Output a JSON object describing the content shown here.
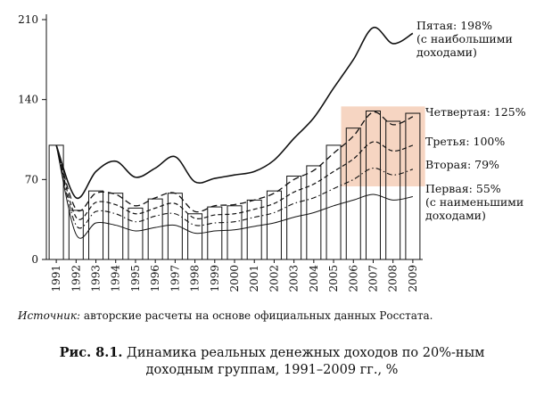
{
  "chart_data": {
    "type": "line",
    "title": "",
    "xlabel": "",
    "ylabel": "",
    "ylim": [
      0,
      210
    ],
    "yticks": [
      0,
      70,
      140,
      210
    ],
    "x": [
      "1991",
      "1992",
      "1993",
      "1994",
      "1995",
      "1996",
      "1997",
      "1998",
      "1999",
      "2000",
      "2001",
      "2002",
      "2003",
      "2004",
      "2005",
      "2006",
      "2007",
      "2008",
      "2009"
    ],
    "bars": [
      100,
      43,
      60,
      58,
      45,
      53,
      58,
      40,
      46,
      47,
      52,
      60,
      73,
      82,
      100,
      115,
      130,
      121,
      128
    ],
    "series": [
      {
        "key": "fifth",
        "style": "solid-thick",
        "values": [
          100,
          54,
          77,
          86,
          72,
          80,
          90,
          68,
          71,
          74,
          77,
          87,
          106,
          124,
          150,
          175,
          203,
          189,
          198
        ],
        "label": [
          "Пятая: 198%",
          "(с наибольшими",
          "доходами)"
        ]
      },
      {
        "key": "fourth",
        "style": "dashed-long",
        "values": [
          100,
          44,
          58,
          57,
          47,
          54,
          58,
          42,
          47,
          48,
          52,
          58,
          70,
          78,
          93,
          108,
          129,
          118,
          125
        ],
        "label": [
          "Четвертая: 125%"
        ]
      },
      {
        "key": "third",
        "style": "dashed",
        "values": [
          100,
          37,
          50,
          48,
          40,
          45,
          49,
          36,
          39,
          40,
          44,
          49,
          59,
          66,
          77,
          88,
          103,
          95,
          100
        ],
        "label": [
          "Третья: 100%"
        ]
      },
      {
        "key": "second",
        "style": "dashdot",
        "values": [
          100,
          30,
          42,
          40,
          33,
          38,
          40,
          30,
          32,
          33,
          37,
          41,
          49,
          54,
          62,
          70,
          80,
          74,
          79
        ],
        "label": [
          "Вторая: 79%"
        ]
      },
      {
        "key": "first",
        "style": "solid",
        "values": [
          100,
          22,
          32,
          30,
          25,
          28,
          30,
          23,
          25,
          26,
          29,
          32,
          37,
          41,
          47,
          52,
          57,
          52,
          55
        ],
        "label": [
          "Первая: 55%",
          "(с наименьшими",
          "доходами)"
        ]
      }
    ],
    "highlight_years": [
      "2006",
      "2009"
    ],
    "highlight_color": "#f6d5c2",
    "grid": false,
    "legend": "right"
  },
  "source": {
    "prefix": "Источник:",
    "text": " авторские расчеты на основе официальных данных Росстата."
  },
  "caption": {
    "label": "Рис. 8.1.",
    "line1": " Динамика реальных денежных доходов по 20%-ным",
    "line2": "доходным группам, 1991–2009 гг., %"
  }
}
